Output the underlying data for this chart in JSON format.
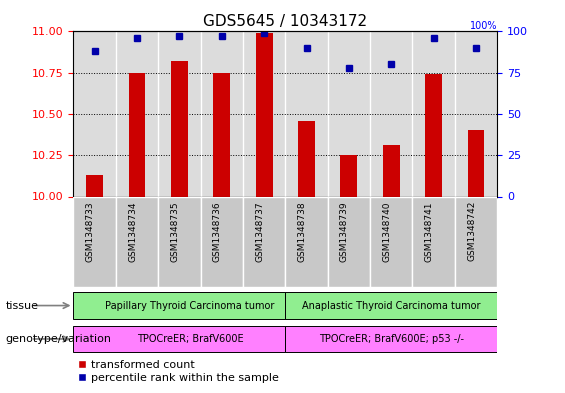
{
  "title": "GDS5645 / 10343172",
  "samples": [
    "GSM1348733",
    "GSM1348734",
    "GSM1348735",
    "GSM1348736",
    "GSM1348737",
    "GSM1348738",
    "GSM1348739",
    "GSM1348740",
    "GSM1348741",
    "GSM1348742"
  ],
  "red_values": [
    10.13,
    10.75,
    10.82,
    10.75,
    10.99,
    10.46,
    10.25,
    10.31,
    10.74,
    10.4
  ],
  "blue_values": [
    88,
    96,
    97,
    97,
    99,
    90,
    78,
    80,
    96,
    90
  ],
  "ylim_left": [
    10,
    11
  ],
  "ylim_right": [
    0,
    100
  ],
  "yticks_left": [
    10,
    10.25,
    10.5,
    10.75,
    11
  ],
  "yticks_right": [
    0,
    25,
    50,
    75,
    100
  ],
  "tissue_labels": [
    "Papillary Thyroid Carcinoma tumor",
    "Anaplastic Thyroid Carcinoma tumor"
  ],
  "tissue_color": "#90EE90",
  "tissue_split": 5,
  "genotype_labels": [
    "TPOCreER; BrafV600E",
    "TPOCreER; BrafV600E; p53 -/-"
  ],
  "genotype_color": "#FF80FF",
  "bar_color": "#CC0000",
  "dot_color": "#0000AA",
  "sample_box_color": "#C8C8C8",
  "legend_red_label": "transformed count",
  "legend_blue_label": "percentile rank within the sample",
  "grid_lines": [
    10.25,
    10.5,
    10.75
  ],
  "right_axis_top_label": "100%"
}
